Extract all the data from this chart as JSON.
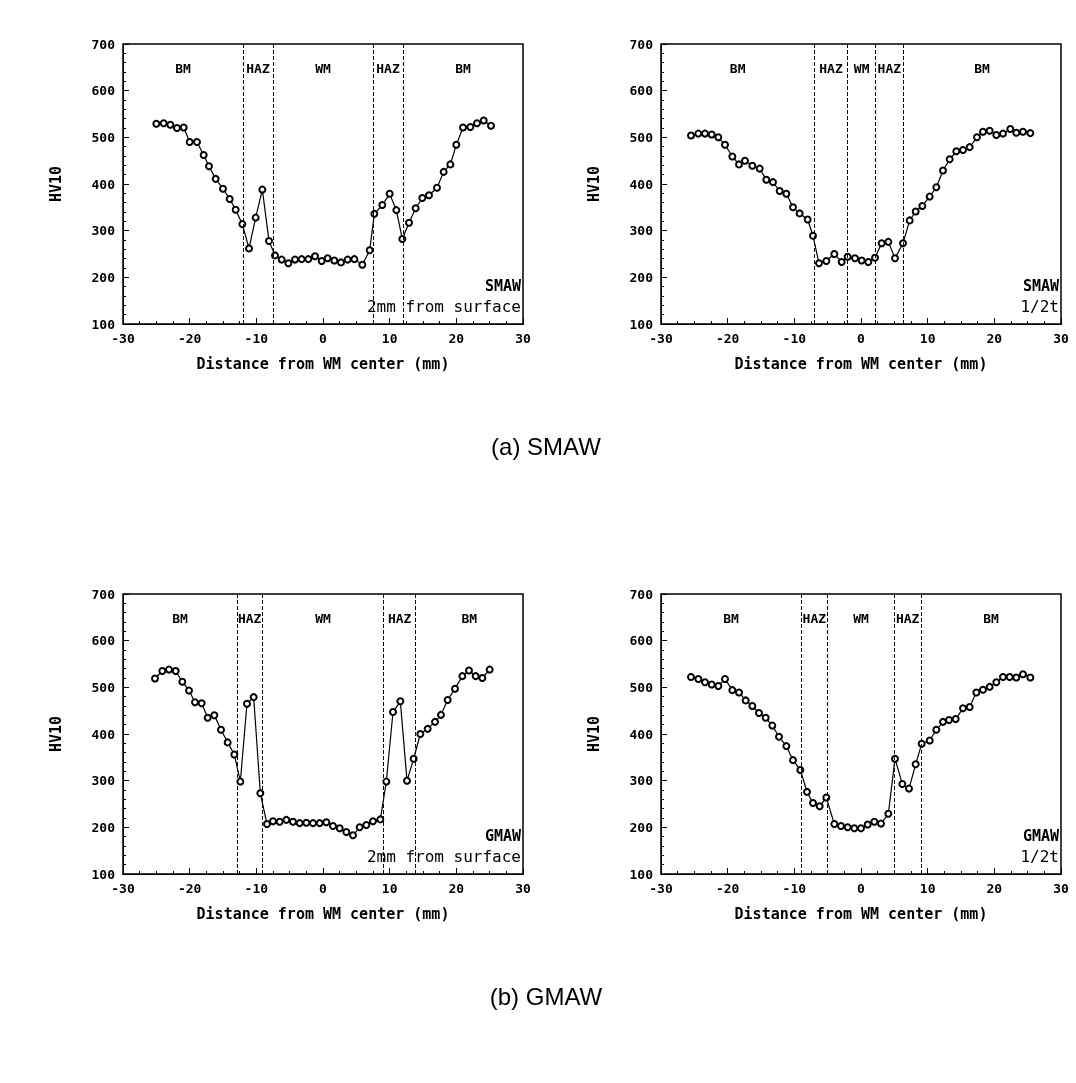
{
  "chart_data": [
    {
      "type": "line",
      "subtitle": "(a) SMAW",
      "xlabel": "Distance from WM center (mm)",
      "ylabel": "HV10",
      "xlim": [
        -30,
        30
      ],
      "xticks": [
        -30,
        -20,
        -10,
        0,
        10,
        20,
        30
      ],
      "ylim": [
        100,
        700
      ],
      "yticks": [
        100,
        200,
        300,
        400,
        500,
        600,
        700
      ],
      "grid": false,
      "marker": "circle",
      "line_style": "solid",
      "series": [
        {
          "color": "#000000",
          "x": [
            -25,
            -23.9,
            -22.9,
            -21.9,
            -20.9,
            -20,
            -18.9,
            -17.9,
            -17.1,
            -16.1,
            -15,
            -14,
            -13.1,
            -12.1,
            -11.1,
            -10.1,
            -9.1,
            -8.1,
            -7.2,
            -6.2,
            -5.2,
            -4.2,
            -3.2,
            -2.2,
            -1.2,
            -0.2,
            0.7,
            1.7,
            2.7,
            3.7,
            4.7,
            5.9,
            7,
            7.7,
            8.9,
            10,
            11,
            11.9,
            12.9,
            13.9,
            14.9,
            15.9,
            17.1,
            18.1,
            19.1,
            20,
            21,
            22.1,
            23.1,
            24.1,
            25.2
          ],
          "values": [
            529,
            530,
            527,
            520,
            521,
            490,
            490,
            462,
            438,
            411,
            390,
            368,
            345,
            314,
            262,
            328,
            388,
            278,
            247,
            238,
            230,
            238,
            239,
            239,
            245,
            235,
            241,
            236,
            232,
            238,
            239,
            227,
            258,
            336,
            355,
            379,
            344,
            282,
            317,
            348,
            370,
            376,
            392,
            426,
            442,
            484,
            521,
            522,
            530,
            536,
            525
          ]
        }
      ],
      "ref_lines": [
        {
          "axis": "x",
          "value": -12,
          "line_style": "dashed"
        },
        {
          "axis": "x",
          "value": -7.5,
          "line_style": "dashed"
        },
        {
          "axis": "x",
          "value": 7.5,
          "line_style": "dashed"
        },
        {
          "axis": "x",
          "value": 12,
          "line_style": "dashed"
        }
      ],
      "annotations": [
        "BM",
        "HAZ",
        "WM",
        "HAZ",
        "BM",
        "SMAW",
        "2mm from surface"
      ]
    },
    {
      "type": "line",
      "xlabel": "Distance from WM center (mm)",
      "ylabel": "HV10",
      "xlim": [
        -30,
        30
      ],
      "xticks": [
        -30,
        -20,
        -10,
        0,
        10,
        20,
        30
      ],
      "ylim": [
        100,
        700
      ],
      "yticks": [
        100,
        200,
        300,
        400,
        500,
        600,
        700
      ],
      "grid": false,
      "marker": "circle",
      "line_style": "solid",
      "series": [
        {
          "color": "#000000",
          "x": [
            -25.5,
            -24.4,
            -23.4,
            -22.4,
            -21.4,
            -20.4,
            -19.3,
            -18.3,
            -17.4,
            -16.3,
            -15.2,
            -14.2,
            -13.2,
            -12.2,
            -11.2,
            -10.2,
            -9.2,
            -8,
            -7.2,
            -6.3,
            -5.2,
            -4,
            -2.9,
            -2,
            -0.9,
            0.1,
            1.1,
            2.1,
            3.1,
            4.1,
            5.1,
            6.3,
            7.3,
            8.2,
            9.2,
            10.3,
            11.3,
            12.3,
            13.3,
            14.3,
            15.3,
            16.3,
            17.4,
            18.3,
            19.3,
            20.3,
            21.3,
            22.4,
            23.3,
            24.3,
            25.4
          ],
          "values": [
            504,
            508,
            508,
            506,
            500,
            484,
            459,
            442,
            450,
            439,
            433,
            409,
            404,
            385,
            379,
            350,
            337,
            324,
            289,
            230,
            235,
            250,
            233,
            244,
            241,
            236,
            233,
            242,
            273,
            276,
            241,
            273,
            322,
            341,
            353,
            373,
            393,
            429,
            453,
            470,
            473,
            479,
            500,
            512,
            514,
            505,
            508,
            518,
            510,
            512,
            509
          ]
        }
      ],
      "ref_lines": [
        {
          "axis": "x",
          "value": -7,
          "line_style": "dashed"
        },
        {
          "axis": "x",
          "value": -2,
          "line_style": "dashed"
        },
        {
          "axis": "x",
          "value": 2.2,
          "line_style": "dashed"
        },
        {
          "axis": "x",
          "value": 6.3,
          "line_style": "dashed"
        }
      ],
      "annotations": [
        "BM",
        "HAZ",
        "WM",
        "HAZ",
        "BM",
        "SMAW",
        "1/2t"
      ]
    },
    {
      "type": "line",
      "subtitle": "(b) GMAW",
      "xlabel": "Distance from WM center (mm)",
      "ylabel": "HV10",
      "xlim": [
        -30,
        30
      ],
      "xticks": [
        -30,
        -20,
        -10,
        0,
        10,
        20,
        30
      ],
      "ylim": [
        100,
        700
      ],
      "yticks": [
        100,
        200,
        300,
        400,
        500,
        600,
        700
      ],
      "grid": false,
      "marker": "circle",
      "line_style": "solid",
      "series": [
        {
          "color": "#000000",
          "x": [
            -25.2,
            -24.1,
            -23.1,
            -22.1,
            -21.1,
            -20.1,
            -19.2,
            -18.2,
            -17.3,
            -16.3,
            -15.3,
            -14.3,
            -13.3,
            -12.4,
            -11.4,
            -10.4,
            -9.4,
            -8.4,
            -7.5,
            -6.5,
            -5.5,
            -4.5,
            -3.5,
            -2.5,
            -1.5,
            -0.5,
            0.5,
            1.5,
            2.5,
            3.5,
            4.5,
            5.5,
            6.5,
            7.5,
            8.6,
            9.5,
            10.5,
            11.6,
            12.6,
            13.6,
            14.6,
            15.7,
            16.8,
            17.7,
            18.7,
            19.8,
            20.9,
            21.9,
            22.9,
            23.9,
            25
          ],
          "values": [
            519,
            535,
            538,
            535,
            512,
            493,
            468,
            466,
            435,
            440,
            409,
            382,
            356,
            298,
            465,
            479,
            273,
            207,
            213,
            212,
            216,
            212,
            209,
            210,
            209,
            209,
            211,
            203,
            198,
            190,
            183,
            200,
            205,
            213,
            217,
            298,
            447,
            470,
            300,
            347,
            400,
            411,
            426,
            441,
            473,
            497,
            524,
            536,
            524,
            520,
            538
          ]
        }
      ],
      "ref_lines": [
        {
          "axis": "x",
          "value": -12.9,
          "line_style": "dashed"
        },
        {
          "axis": "x",
          "value": -9.1,
          "line_style": "dashed"
        },
        {
          "axis": "x",
          "value": 9.1,
          "line_style": "dashed"
        },
        {
          "axis": "x",
          "value": 13.9,
          "line_style": "dashed"
        }
      ],
      "annotations": [
        "BM",
        "HAZ",
        "WM",
        "HAZ",
        "BM",
        "GMAW",
        "2mm from surface"
      ]
    },
    {
      "type": "line",
      "xlabel": "Distance from WM center (mm)",
      "ylabel": "HV10",
      "xlim": [
        -30,
        30
      ],
      "xticks": [
        -30,
        -20,
        -10,
        0,
        10,
        20,
        30
      ],
      "ylim": [
        100,
        700
      ],
      "yticks": [
        100,
        200,
        300,
        400,
        500,
        600,
        700
      ],
      "grid": false,
      "marker": "circle",
      "line_style": "solid",
      "series": [
        {
          "color": "#000000",
          "x": [
            -25.5,
            -24.4,
            -23.4,
            -22.4,
            -21.4,
            -20.4,
            -19.3,
            -18.3,
            -17.3,
            -16.3,
            -15.3,
            -14.3,
            -13.3,
            -12.3,
            -11.2,
            -10.2,
            -9.1,
            -8.1,
            -7.2,
            -6.2,
            -5.2,
            -4,
            -3,
            -2,
            -1,
            0,
            1,
            2,
            3,
            4.1,
            5.1,
            6.2,
            7.2,
            8.2,
            9.1,
            10.3,
            11.3,
            12.3,
            13.2,
            14.2,
            15.3,
            16.3,
            17.3,
            18.3,
            19.3,
            20.3,
            21.3,
            22.3,
            23.3,
            24.3,
            25.4
          ],
          "values": [
            522,
            518,
            511,
            506,
            503,
            518,
            494,
            489,
            472,
            460,
            445,
            435,
            418,
            394,
            374,
            344,
            323,
            276,
            252,
            245,
            264,
            207,
            203,
            200,
            198,
            198,
            206,
            212,
            208,
            229,
            347,
            293,
            283,
            335,
            379,
            386,
            409,
            426,
            430,
            432,
            455,
            458,
            489,
            495,
            501,
            511,
            522,
            522,
            521,
            528,
            521
          ]
        }
      ],
      "ref_lines": [
        {
          "axis": "x",
          "value": -9,
          "line_style": "dashed"
        },
        {
          "axis": "x",
          "value": -5,
          "line_style": "dashed"
        },
        {
          "axis": "x",
          "value": 5,
          "line_style": "dashed"
        },
        {
          "axis": "x",
          "value": 9,
          "line_style": "dashed"
        }
      ],
      "annotations": [
        "BM",
        "HAZ",
        "WM",
        "HAZ",
        "BM",
        "GMAW",
        "1/2t"
      ]
    }
  ]
}
